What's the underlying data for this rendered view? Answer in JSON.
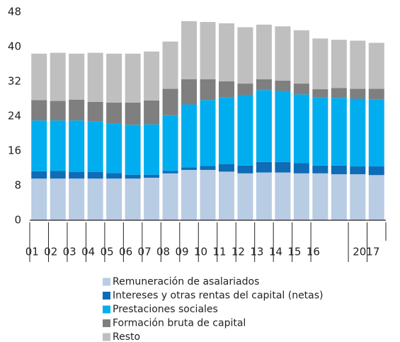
{
  "chart_data": {
    "type": "stacked-bar",
    "categories": [
      "01",
      "02",
      "03",
      "04",
      "05",
      "06",
      "07",
      "08",
      "09",
      "10",
      "11",
      "12",
      "13",
      "14",
      "15",
      "16",
      null,
      "2017",
      null
    ],
    "series": [
      {
        "name": "Remuneración de asalariados",
        "color": "#b8cce4",
        "values": [
          9.6,
          9.6,
          9.6,
          9.6,
          9.6,
          9.6,
          9.8,
          10.8,
          11.6,
          11.6,
          11.2,
          10.8,
          11.0,
          11.0,
          10.8,
          10.8,
          10.6,
          10.6,
          10.4
        ]
      },
      {
        "name": "Intereses y otras rentas del capital (netas)",
        "color": "#0f6cb6",
        "values": [
          1.7,
          1.8,
          1.5,
          1.5,
          1.3,
          0.9,
          0.7,
          0.6,
          0.6,
          0.9,
          1.7,
          1.8,
          2.4,
          2.4,
          2.4,
          1.8,
          2.0,
          1.8,
          2.0
        ]
      },
      {
        "name": "Prestaciones sociales",
        "color": "#00aeef",
        "values": [
          11.7,
          11.6,
          11.9,
          11.7,
          11.4,
          11.5,
          11.6,
          12.8,
          14.5,
          15.2,
          15.4,
          16.3,
          16.6,
          16.4,
          15.8,
          15.7,
          15.6,
          15.6,
          15.4
        ]
      },
      {
        "name": "Formación bruta de capital",
        "color": "#7f7f7f",
        "values": [
          4.7,
          4.5,
          4.8,
          4.5,
          4.8,
          5.1,
          5.5,
          6.1,
          5.8,
          4.8,
          3.7,
          2.6,
          2.5,
          2.4,
          2.5,
          1.9,
          2.3,
          2.3,
          2.5
        ]
      },
      {
        "name": "Resto",
        "color": "#bfbfbf",
        "values": [
          10.7,
          11.1,
          10.6,
          11.3,
          11.3,
          11.3,
          11.3,
          10.9,
          13.4,
          13.2,
          13.4,
          13.0,
          12.6,
          12.5,
          12.3,
          11.7,
          11.1,
          11.1,
          10.6
        ]
      }
    ],
    "ylim": [
      0,
      48
    ],
    "yticks": [
      0,
      8,
      16,
      24,
      32,
      40,
      48
    ]
  }
}
